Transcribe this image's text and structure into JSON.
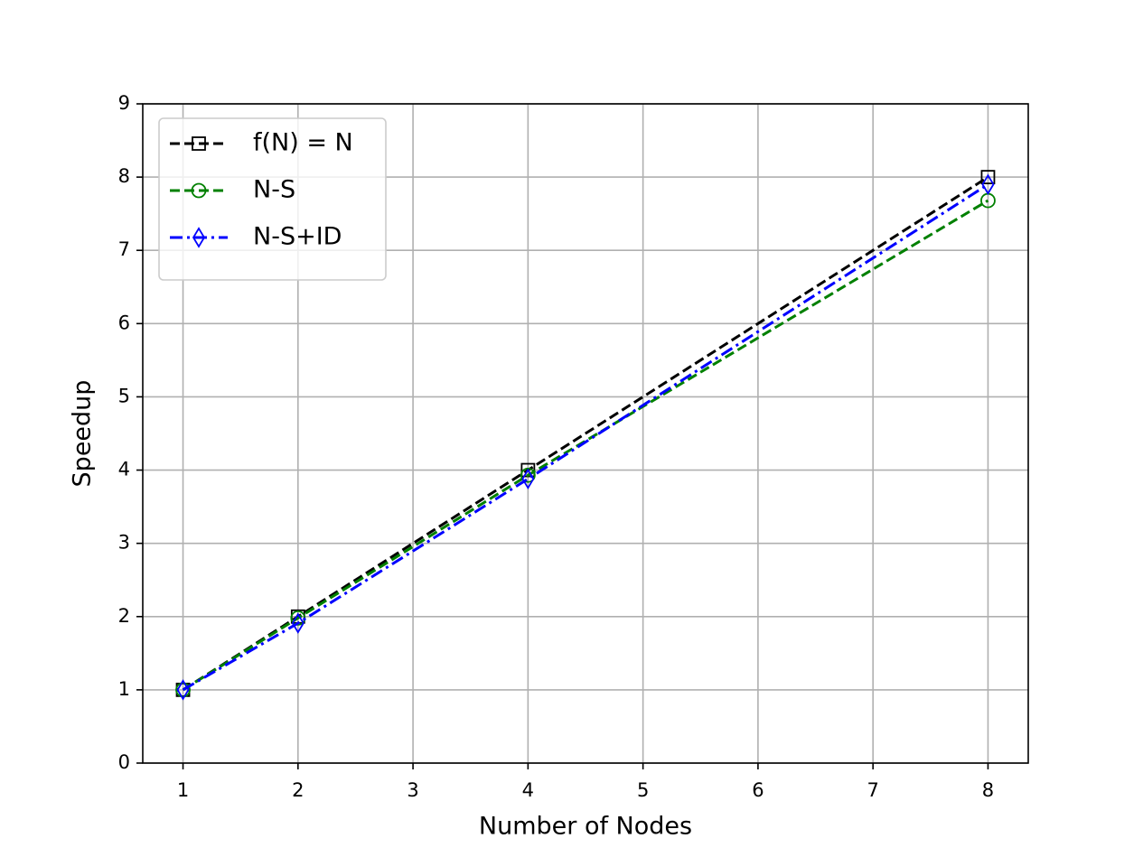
{
  "chart_data": {
    "type": "line",
    "xlabel": "Number of Nodes",
    "ylabel": "Speedup",
    "x": [
      1,
      2,
      4,
      8
    ],
    "series": [
      {
        "name": "f(N) = N",
        "color": "#000000",
        "linestyle": "dashed",
        "marker": "square",
        "values": [
          1,
          2,
          4,
          8
        ]
      },
      {
        "name": "N-S",
        "color": "#008000",
        "linestyle": "dashed",
        "marker": "circle",
        "values": [
          1,
          1.98,
          3.93,
          7.68
        ]
      },
      {
        "name": "N-S+ID",
        "color": "#0000ff",
        "linestyle": "dashdot",
        "marker": "thin_diamond",
        "values": [
          1,
          1.91,
          3.88,
          7.9
        ]
      }
    ],
    "xlim": [
      0.65,
      8.35
    ],
    "xticks": [
      1,
      2,
      3,
      4,
      5,
      6,
      7,
      8
    ],
    "ylim": [
      0,
      9
    ],
    "yticks": [
      0,
      1,
      2,
      3,
      4,
      5,
      6,
      7,
      8,
      9
    ],
    "grid": true,
    "legend": "upper left"
  }
}
